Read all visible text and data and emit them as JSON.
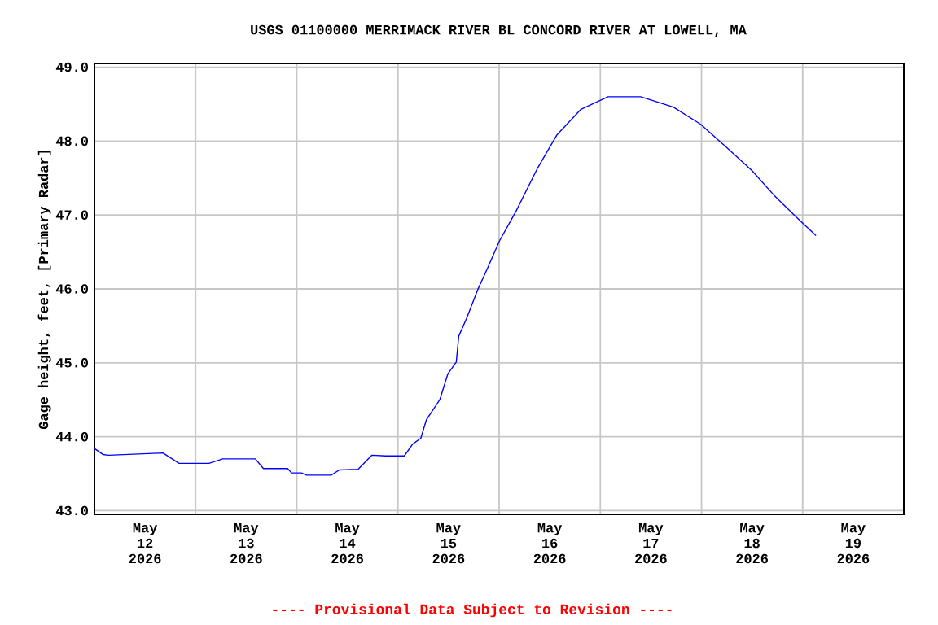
{
  "chart_data": {
    "type": "line",
    "title": "USGS 01100000 MERRIMACK RIVER BL CONCORD RIVER AT LOWELL, MA",
    "ylabel": "Gage height, feet, [Primary Radar]",
    "annotations": [
      "---- Provisional Data Subject to Revision ----"
    ],
    "x": [
      "2026-05-12T00:00",
      "2026-05-12T02:00",
      "2026-05-12T03:20",
      "2026-05-12T16:15",
      "2026-05-12T20:05",
      "2026-05-13T03:10",
      "2026-05-13T06:25",
      "2026-05-13T14:10",
      "2026-05-13T16:05",
      "2026-05-13T21:50",
      "2026-05-13T22:45",
      "2026-05-14T01:05",
      "2026-05-14T02:20",
      "2026-05-14T08:10",
      "2026-05-14T10:05",
      "2026-05-14T14:35",
      "2026-05-14T17:50",
      "2026-05-14T21:05",
      "2026-05-15T01:30",
      "2026-05-15T03:30",
      "2026-05-15T05:25",
      "2026-05-15T06:45",
      "2026-05-15T09:55",
      "2026-05-15T11:50",
      "2026-05-15T13:50",
      "2026-05-15T14:25",
      "2026-05-15T16:25",
      "2026-05-15T18:55",
      "2026-05-15T21:15",
      "2026-05-16T00:05",
      "2026-05-16T04:00",
      "2026-05-16T09:10",
      "2026-05-16T13:40",
      "2026-05-16T19:25",
      "2026-05-17T01:50",
      "2026-05-17T09:35",
      "2026-05-17T17:20",
      "2026-05-17T23:45",
      "2026-05-18T06:15",
      "2026-05-18T12:00",
      "2026-05-18T17:10",
      "2026-05-18T22:20",
      "2026-05-19T03:10"
    ],
    "series": [
      {
        "color": "#0000ff",
        "values": [
          43.84,
          43.76,
          43.75,
          43.78,
          43.64,
          43.64,
          43.7,
          43.7,
          43.57,
          43.57,
          43.51,
          43.51,
          43.48,
          43.48,
          43.55,
          43.56,
          43.75,
          43.74,
          43.74,
          43.9,
          43.98,
          44.23,
          44.5,
          44.85,
          45.01,
          45.36,
          45.62,
          45.99,
          46.28,
          46.65,
          47.05,
          47.64,
          48.08,
          48.43,
          48.6,
          48.6,
          48.46,
          48.23,
          47.9,
          47.6,
          47.27,
          46.98,
          46.72
        ]
      }
    ],
    "xlim": [
      "2026-05-12",
      "2026-05-20"
    ],
    "xticks": [
      {
        "value": "2026-05-13",
        "label": null
      },
      {
        "value": "2026-05-14",
        "label": null
      },
      {
        "value": "2026-05-15",
        "label": null
      },
      {
        "value": "2026-05-16",
        "label": null
      },
      {
        "value": "2026-05-17",
        "label": null
      },
      {
        "value": "2026-05-18",
        "label": null
      },
      {
        "value": "2026-05-19",
        "label": null
      },
      {
        "value": "2026-05-12T12:00",
        "label": "May 12 2026"
      },
      {
        "value": "2026-05-13T12:00",
        "label": "May 13 2026"
      },
      {
        "value": "2026-05-14T12:00",
        "label": "May 14 2026"
      },
      {
        "value": "2026-05-15T12:00",
        "label": "May 15 2026"
      },
      {
        "value": "2026-05-16T12:00",
        "label": "May 16 2026"
      },
      {
        "value": "2026-05-17T12:00",
        "label": "May 17 2026"
      },
      {
        "value": "2026-05-18T12:00",
        "label": "May 18 2026"
      },
      {
        "value": "2026-05-19T12:00",
        "label": "May 19 2026"
      }
    ],
    "ylim": [
      42.95,
      49.05
    ],
    "yticks": [
      {
        "value": 43,
        "label": "43.0"
      },
      {
        "value": 44,
        "label": "44.0"
      },
      {
        "value": 45,
        "label": "45.0"
      },
      {
        "value": 46,
        "label": "46.0"
      },
      {
        "value": 47,
        "label": "47.0"
      },
      {
        "value": 48,
        "label": "48.0"
      },
      {
        "value": 49,
        "label": "49.0"
      }
    ],
    "grid": true,
    "marker": "none",
    "line_style": "solid"
  }
}
